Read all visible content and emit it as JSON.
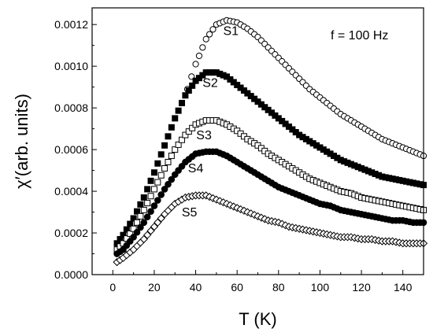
{
  "chart_data": {
    "type": "scatter",
    "title": "",
    "xlabel": "T (K)",
    "ylabel": "χ′(arb. units)",
    "annotation": "f = 100 Hz",
    "xlim": [
      -10,
      150
    ],
    "ylim": [
      0,
      0.00128
    ],
    "xticks": [
      0,
      20,
      40,
      60,
      80,
      100,
      120,
      140
    ],
    "yticks": [
      0.0,
      0.0002,
      0.0004,
      0.0006,
      0.0008,
      0.001,
      0.0012
    ],
    "xtick_labels": [
      "0",
      "20",
      "40",
      "60",
      "80",
      "100",
      "120",
      "140"
    ],
    "ytick_labels": [
      "0.0000",
      "0.0002",
      "0.0004",
      "0.0006",
      "0.0008",
      "0.0010",
      "0.0012"
    ],
    "grid": false,
    "legend": "none",
    "series": [
      {
        "name": "S1",
        "marker": "open-circle",
        "x": [
          36,
          40,
          45,
          50,
          55,
          60,
          65,
          70,
          75,
          80,
          85,
          90,
          95,
          100,
          105,
          110,
          115,
          120,
          125,
          130,
          135,
          140,
          145,
          150
        ],
        "y": [
          0.00089,
          0.00101,
          0.00113,
          0.0012,
          0.00122,
          0.00121,
          0.00118,
          0.00114,
          0.00109,
          0.00104,
          0.00099,
          0.00094,
          0.00089,
          0.00085,
          0.00081,
          0.00077,
          0.00074,
          0.00071,
          0.00068,
          0.00065,
          0.00063,
          0.00061,
          0.00059,
          0.00057
        ]
      },
      {
        "name": "S2",
        "marker": "filled-square",
        "x": [
          2,
          5,
          10,
          15,
          20,
          25,
          30,
          35,
          40,
          45,
          50,
          55,
          60,
          65,
          70,
          75,
          80,
          85,
          90,
          95,
          100,
          105,
          110,
          115,
          120,
          125,
          130,
          135,
          140,
          145,
          150
        ],
        "y": [
          0.00015,
          0.00019,
          0.00027,
          0.00037,
          0.00049,
          0.00062,
          0.00075,
          0.00086,
          0.00093,
          0.00097,
          0.00097,
          0.00095,
          0.00091,
          0.00087,
          0.00083,
          0.00079,
          0.00075,
          0.00071,
          0.00067,
          0.00064,
          0.00061,
          0.00058,
          0.00055,
          0.00053,
          0.00051,
          0.00049,
          0.00047,
          0.00046,
          0.00045,
          0.00044,
          0.00043
        ]
      },
      {
        "name": "S3",
        "marker": "open-square",
        "x": [
          2,
          5,
          10,
          15,
          20,
          25,
          30,
          35,
          40,
          45,
          50,
          55,
          60,
          65,
          70,
          75,
          80,
          85,
          90,
          95,
          100,
          105,
          110,
          115,
          120,
          125,
          130,
          135,
          140,
          145,
          150
        ],
        "y": [
          0.00012,
          0.00015,
          0.00022,
          0.00031,
          0.00041,
          0.00051,
          0.0006,
          0.00067,
          0.00072,
          0.00074,
          0.00074,
          0.00072,
          0.00069,
          0.00065,
          0.00062,
          0.00058,
          0.00055,
          0.00052,
          0.00049,
          0.00046,
          0.00044,
          0.00042,
          0.0004,
          0.00039,
          0.00037,
          0.00036,
          0.00035,
          0.00034,
          0.00033,
          0.00032,
          0.00031
        ]
      },
      {
        "name": "S4",
        "marker": "filled-circle",
        "x": [
          2,
          5,
          10,
          15,
          20,
          25,
          30,
          35,
          40,
          45,
          50,
          55,
          60,
          65,
          70,
          75,
          80,
          85,
          90,
          95,
          100,
          105,
          110,
          115,
          120,
          125,
          130,
          135,
          140,
          145,
          150
        ],
        "y": [
          0.0001,
          0.00012,
          0.00018,
          0.00025,
          0.00033,
          0.00041,
          0.00048,
          0.00054,
          0.00058,
          0.00059,
          0.00059,
          0.00057,
          0.00054,
          0.00051,
          0.00048,
          0.00045,
          0.00042,
          0.0004,
          0.00038,
          0.00036,
          0.00034,
          0.00033,
          0.00031,
          0.0003,
          0.00029,
          0.00028,
          0.00027,
          0.00026,
          0.00026,
          0.00025,
          0.00025
        ]
      },
      {
        "name": "S5",
        "marker": "open-diamond",
        "x": [
          2,
          5,
          10,
          15,
          20,
          25,
          30,
          35,
          40,
          45,
          50,
          55,
          60,
          65,
          70,
          75,
          80,
          85,
          90,
          95,
          100,
          105,
          110,
          115,
          120,
          125,
          130,
          135,
          140,
          145,
          150
        ],
        "y": [
          6e-05,
          8e-05,
          0.00012,
          0.00017,
          0.00023,
          0.00029,
          0.00034,
          0.00037,
          0.00038,
          0.00038,
          0.00036,
          0.00034,
          0.00032,
          0.0003,
          0.00028,
          0.00026,
          0.00025,
          0.00023,
          0.00022,
          0.00021,
          0.0002,
          0.00019,
          0.00018,
          0.00018,
          0.00017,
          0.00017,
          0.00016,
          0.00016,
          0.00015,
          0.00015,
          0.00015
        ]
      }
    ],
    "series_labels": [
      {
        "text": "S1",
        "x": 57,
        "y": 0.00115
      },
      {
        "text": "S2",
        "x": 47,
        "y": 0.0009
      },
      {
        "text": "S3",
        "x": 44,
        "y": 0.00065
      },
      {
        "text": "S4",
        "x": 40,
        "y": 0.00049
      },
      {
        "text": "S5",
        "x": 37,
        "y": 0.00028
      }
    ]
  }
}
